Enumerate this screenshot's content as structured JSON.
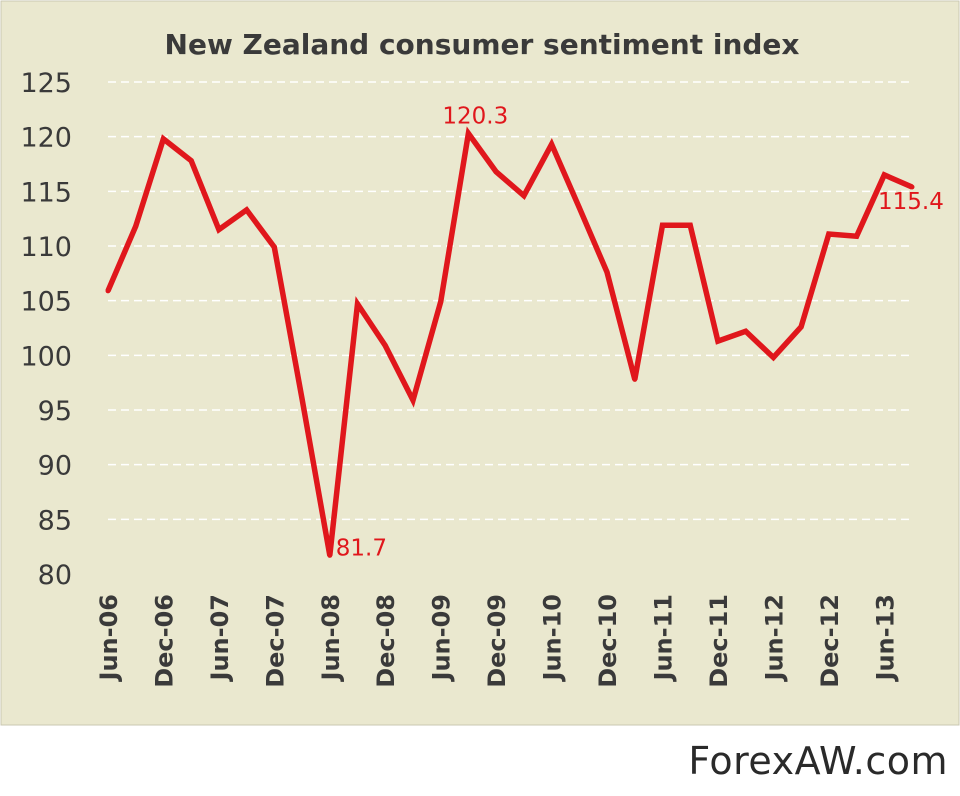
{
  "chart_data": {
    "type": "line",
    "title": "New Zealand consumer sentiment index",
    "xlabel": "",
    "ylabel": "",
    "ylim": [
      80,
      125
    ],
    "yticks": [
      80,
      85,
      90,
      95,
      100,
      105,
      110,
      115,
      120,
      125
    ],
    "grid": "horizontal-dashed",
    "x_labels": [
      "Jun-06",
      "Dec-06",
      "Jun-07",
      "Dec-07",
      "Jun-08",
      "Dec-08",
      "Jun-09",
      "Dec-09",
      "Jun-10",
      "Dec-10",
      "Jun-11",
      "Dec-11",
      "Jun-12",
      "Dec-12",
      "Jun-13"
    ],
    "x_label_indices": [
      0,
      2,
      4,
      6,
      8,
      10,
      12,
      14,
      16,
      18,
      20,
      22,
      24,
      26,
      28
    ],
    "series": [
      {
        "values": [
          105.9,
          111.8,
          119.8,
          117.8,
          111.5,
          113.3,
          109.9,
          96.0,
          81.7,
          104.7,
          100.9,
          95.9,
          104.9,
          120.3,
          116.8,
          114.6,
          119.3,
          113.5,
          107.6,
          97.8,
          111.9,
          111.9,
          101.3,
          102.2,
          99.8,
          102.6,
          111.1,
          110.9,
          116.5,
          115.4
        ],
        "color": "#e0171c"
      }
    ],
    "annotations": [
      {
        "index": 8,
        "text": "81.7",
        "color": "#e0171c"
      },
      {
        "index": 13,
        "text": "120.3",
        "color": "#e0171c"
      },
      {
        "index": 29,
        "text": "115.4",
        "color": "#e0171c"
      }
    ],
    "colors": {
      "background": "#eae8cf",
      "gridline": "#ffffff",
      "text": "#3a3a3a"
    }
  },
  "watermark": "ForexAW.com"
}
